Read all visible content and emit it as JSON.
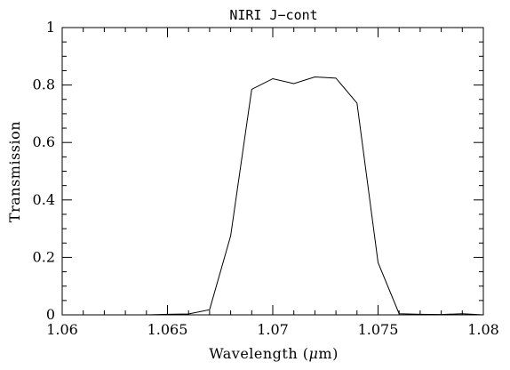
{
  "chart_data": {
    "type": "line",
    "title": "NIRI J−cont",
    "xlabel_prefix": "Wavelength (",
    "xlabel_symbol": "μ",
    "xlabel_suffix": "m)",
    "ylabel": "Transmission",
    "xlim": [
      1.06,
      1.08
    ],
    "ylim": [
      0,
      1
    ],
    "x_ticks": [
      1.06,
      1.065,
      1.07,
      1.075,
      1.08
    ],
    "x_tick_labels": [
      "1.06",
      "1.065",
      "1.07",
      "1.075",
      "1.08"
    ],
    "x_minor_step": 0.001,
    "y_ticks": [
      0,
      0.2,
      0.4,
      0.6,
      0.8,
      1
    ],
    "y_tick_labels": [
      "0",
      "0.2",
      "0.4",
      "0.6",
      "0.8",
      "1"
    ],
    "y_minor_step": 0.05,
    "grid": false,
    "series": [
      {
        "x": [
          1.06,
          1.061,
          1.062,
          1.063,
          1.064,
          1.065,
          1.066,
          1.067,
          1.068,
          1.069,
          1.07,
          1.071,
          1.072,
          1.073,
          1.074,
          1.075,
          1.076,
          1.077,
          1.078,
          1.079,
          1.08
        ],
        "y": [
          0.0,
          0.0,
          0.0,
          0.0,
          0.0,
          0.002,
          0.003,
          0.018,
          0.275,
          0.785,
          0.822,
          0.805,
          0.828,
          0.824,
          0.737,
          0.182,
          0.004,
          0.002,
          0.001,
          0.004,
          0.0
        ]
      }
    ]
  }
}
